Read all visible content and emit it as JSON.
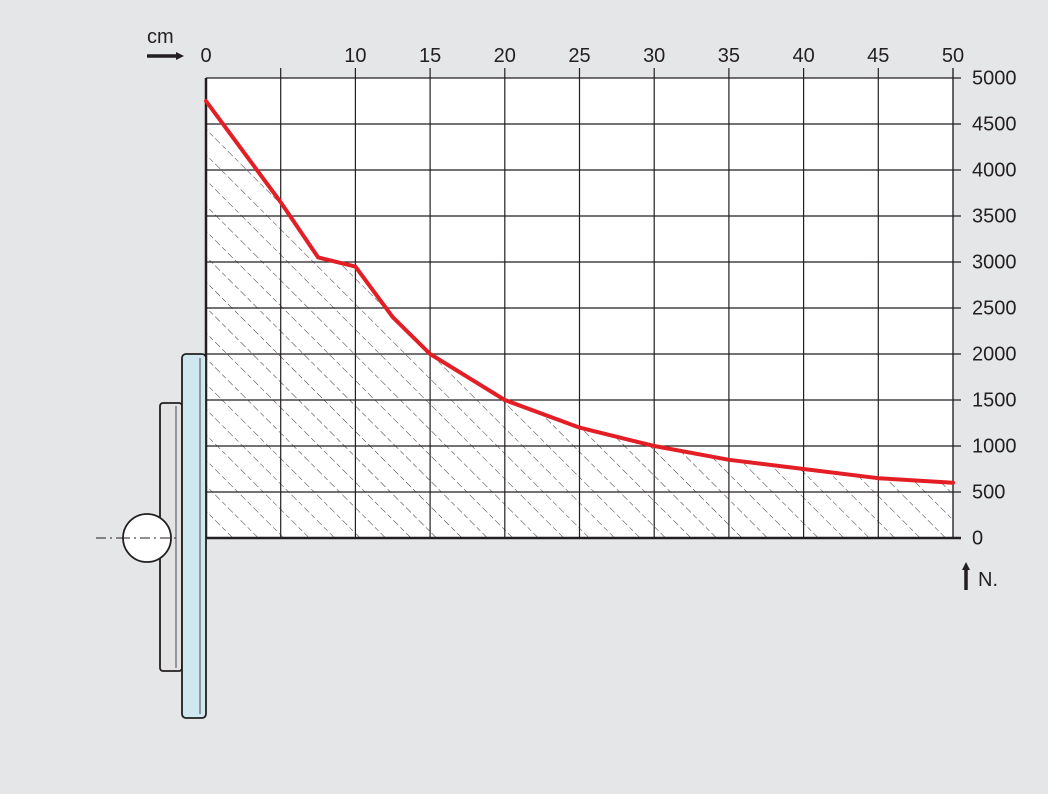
{
  "chart_data": {
    "type": "line",
    "x_unit": "cm",
    "y_unit": "N.",
    "xlim": [
      0,
      50
    ],
    "ylim": [
      0,
      5000
    ],
    "x_ticks": [
      0,
      5,
      10,
      15,
      20,
      25,
      30,
      35,
      40,
      45,
      50
    ],
    "x_tick_labels": [
      "0",
      "",
      "10",
      "15",
      "20",
      "25",
      "30",
      "35",
      "40",
      "45",
      "50"
    ],
    "y_ticks": [
      0,
      500,
      1000,
      1500,
      2000,
      2500,
      3000,
      3500,
      4000,
      4500,
      5000
    ],
    "y_tick_labels": [
      "0",
      "500",
      "1000",
      "1500",
      "2000",
      "2500",
      "3000",
      "3500",
      "4000",
      "4500",
      "5000"
    ],
    "grid": true,
    "series": [
      {
        "color": "#e31e24",
        "x": [
          0,
          2.5,
          5,
          7.5,
          10,
          12.5,
          15,
          20,
          25,
          30,
          35,
          40,
          45,
          50
        ],
        "y": [
          4750,
          4200,
          3650,
          3050,
          2950,
          2400,
          2000,
          1500,
          1200,
          1000,
          850,
          750,
          650,
          600
        ]
      }
    ],
    "hatched_area": "under-curve"
  }
}
